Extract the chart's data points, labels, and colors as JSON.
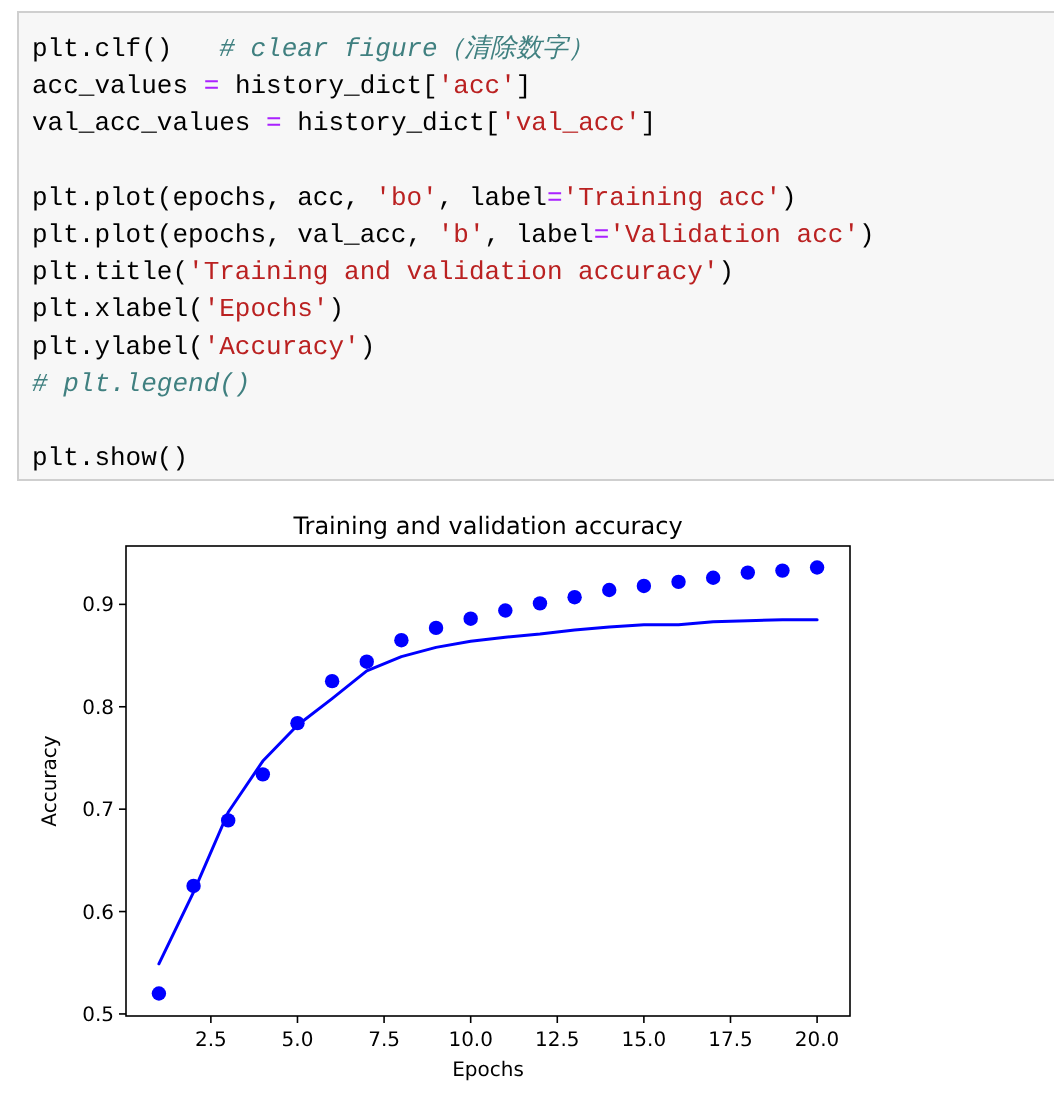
{
  "chart_data": {
    "type": "line",
    "title": "Training and validation accuracy",
    "xlabel": "Epochs",
    "ylabel": "Accuracy",
    "x": [
      1,
      2,
      3,
      4,
      5,
      6,
      7,
      8,
      9,
      10,
      11,
      12,
      13,
      14,
      15,
      16,
      17,
      18,
      19,
      20
    ],
    "xlim": [
      0.05,
      20.95
    ],
    "xticks": [
      {
        "value": 2.5,
        "label": "2.5"
      },
      {
        "value": 5,
        "label": "5.0"
      },
      {
        "value": 7.5,
        "label": "7.5"
      },
      {
        "value": 10,
        "label": "10.0"
      },
      {
        "value": 12.5,
        "label": "12.5"
      },
      {
        "value": 15,
        "label": "15.0"
      },
      {
        "value": 17.5,
        "label": "17.5"
      },
      {
        "value": 20,
        "label": "20.0"
      }
    ],
    "ylim": [
      0.498,
      0.957
    ],
    "yticks": [
      0.5,
      0.6,
      0.7,
      0.8,
      0.9
    ],
    "grid": false,
    "series": [
      {
        "type": "scatter",
        "marker": "circle",
        "color": "#0000ff",
        "values": [
          0.52,
          0.625,
          0.689,
          0.734,
          0.784,
          0.825,
          0.844,
          0.865,
          0.877,
          0.886,
          0.894,
          0.901,
          0.907,
          0.914,
          0.918,
          0.922,
          0.926,
          0.931,
          0.933,
          0.936
        ]
      },
      {
        "type": "line",
        "marker": "none",
        "line_style": "solid",
        "color": "#0000ff",
        "values": [
          0.549,
          0.619,
          0.697,
          0.747,
          0.782,
          0.808,
          0.835,
          0.849,
          0.858,
          0.864,
          0.868,
          0.871,
          0.875,
          0.878,
          0.88,
          0.88,
          0.883,
          0.884,
          0.885,
          0.885
        ]
      }
    ],
    "annotations": [
      "plt.clf()   # clear figure（清除数字）",
      "acc_values = history_dict['acc']",
      "val_acc_values = history_dict['val_acc']",
      "plt.plot(epochs, acc, 'bo', label='Training acc')",
      "plt.plot(epochs, val_acc, 'b', label='Validation acc')",
      "plt.title('Training and validation accuracy')",
      "plt.xlabel('Epochs')",
      "plt.ylabel('Accuracy')",
      "# plt.legend()",
      "plt.show()"
    ]
  }
}
